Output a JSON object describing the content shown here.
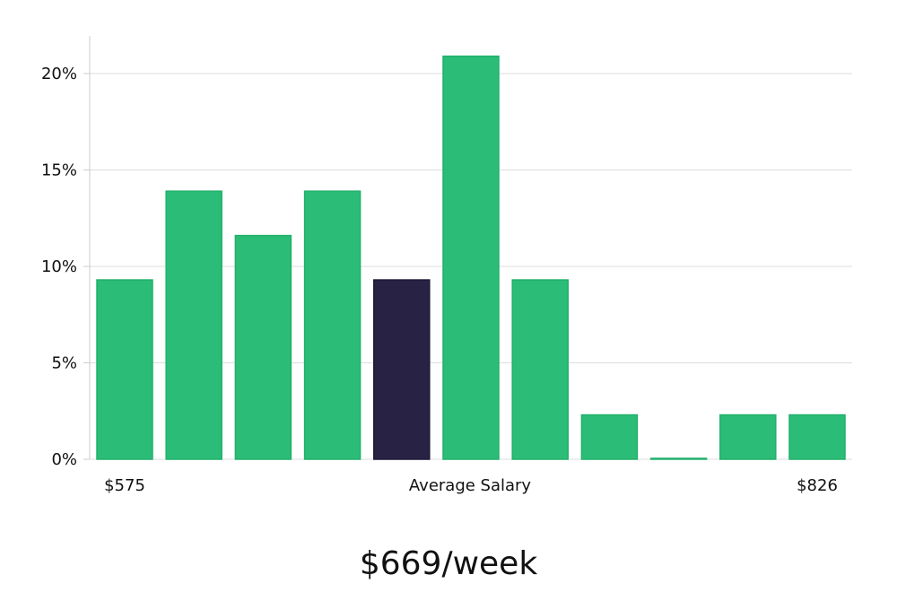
{
  "chart_data": {
    "type": "bar",
    "values": [
      9.3,
      13.9,
      11.6,
      13.9,
      9.3,
      20.9,
      9.3,
      2.3,
      0,
      2.3,
      2.3
    ],
    "highlight_index": 4,
    "ylim": [
      0,
      22
    ],
    "yticks": [
      0,
      5,
      10,
      15,
      20
    ],
    "ytick_labels": [
      "0%",
      "5%",
      "10%",
      "15%",
      "20%"
    ],
    "x_labels": {
      "left": "$575",
      "center": "Average Salary",
      "right": "$826"
    },
    "grid": true,
    "colors": {
      "bar": "#2bbd77",
      "bar_edge": "#20b06a",
      "highlight": "#282345",
      "grid": "#dddddd",
      "axis": "#cccccc"
    }
  },
  "summary": "$669/week"
}
